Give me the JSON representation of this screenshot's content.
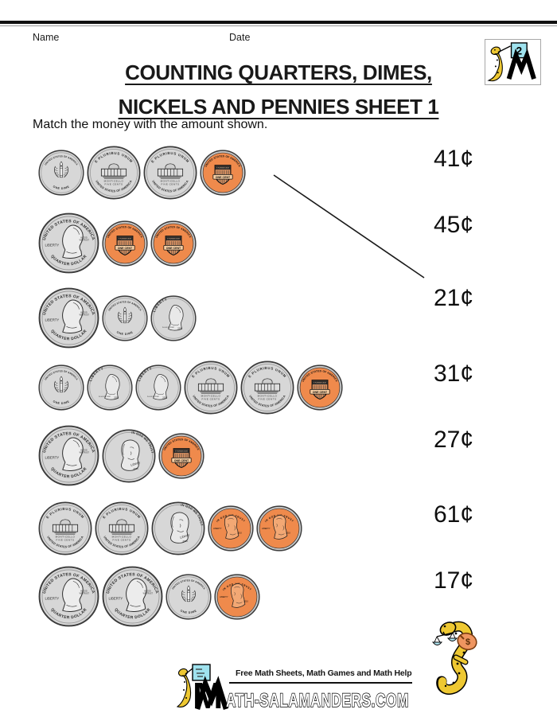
{
  "header": {
    "name_label": "Name",
    "date_label": "Date",
    "title_line1": "COUNTING QUARTERS, DIMES,",
    "title_line2": "NICKELS AND PENNIES SHEET 1",
    "instruction": "Match the money with the amount shown."
  },
  "logo": {
    "card_number": "2"
  },
  "rows": [
    {
      "coins": [
        "dime-reverse",
        "nickel-reverse",
        "nickel-reverse",
        "penny-reverse"
      ],
      "amount": "41¢"
    },
    {
      "coins": [
        "quarter-obverse",
        "penny-reverse",
        "penny-reverse"
      ],
      "amount": "45¢"
    },
    {
      "coins": [
        "quarter-obverse",
        "dime-reverse",
        "dime-obverse"
      ],
      "amount": "21¢"
    },
    {
      "coins": [
        "dime-reverse",
        "dime-obverse",
        "dime-obverse",
        "nickel-reverse",
        "nickel-reverse",
        "penny-reverse"
      ],
      "amount": "31¢"
    },
    {
      "coins": [
        "quarter-obverse",
        "nickel-obverse",
        "penny-reverse"
      ],
      "amount": "27¢"
    },
    {
      "coins": [
        "nickel-reverse",
        "nickel-reverse",
        "nickel-obverse",
        "penny-obverse",
        "penny-obverse"
      ],
      "amount": "61¢"
    },
    {
      "coins": [
        "quarter-obverse",
        "quarter-obverse",
        "dime-reverse",
        "penny-obverse"
      ],
      "amount": "17¢"
    }
  ],
  "example_match": {
    "connects_row": 1,
    "connects_amount": "21¢"
  },
  "coin_types": {
    "quarter-obverse": {
      "top": "UNITED STATES OF AMERICA",
      "left": "LIBERTY",
      "motto_line1": "IN GOD",
      "motto_line2": "WE TRUST",
      "bottom": "QUARTER DOLLAR"
    },
    "nickel-reverse": {
      "top": "E PLURIBUS UNUM",
      "building": "MONTICELLO",
      "denomination": "FIVE CENTS",
      "bottom": "UNITED STATES OF AMERICA"
    },
    "nickel-obverse": {
      "motto": "IN GOD WE TRUST",
      "liberty": "Liberty",
      "year": "2006"
    },
    "dime-reverse": {
      "top": "UNITED STATES OF AMERICA",
      "bottom": "ONE DIME"
    },
    "dime-obverse": {
      "liberty": "LIBERTY",
      "motto": "IN GOD WE TRUST",
      "year": "2005"
    },
    "penny-reverse": {
      "top": "UNITED STATES OF AMERICA",
      "motto": "E PLURIBUS UNUM",
      "denomination": "ONE CENT"
    },
    "penny-obverse": {
      "motto": "IN GOD WE TRUST",
      "liberty": "LIBERTY",
      "year": "2010"
    }
  },
  "footer": {
    "tagline": "Free Math Sheets, Math Games and Math Help",
    "brand_m": "M",
    "brand_rest": "ATH-SALAMANDERS.COM"
  },
  "mascot": {
    "bag_symbol": "$"
  },
  "colors": {
    "silver": "#d7d7d7",
    "penny_copper": "#ef8a4c",
    "penny_rim": "#c9c9c9",
    "logo_cyan": "#9fe2ee",
    "salamander_yellow": "#eec832",
    "bag_orange": "#ef9560"
  }
}
